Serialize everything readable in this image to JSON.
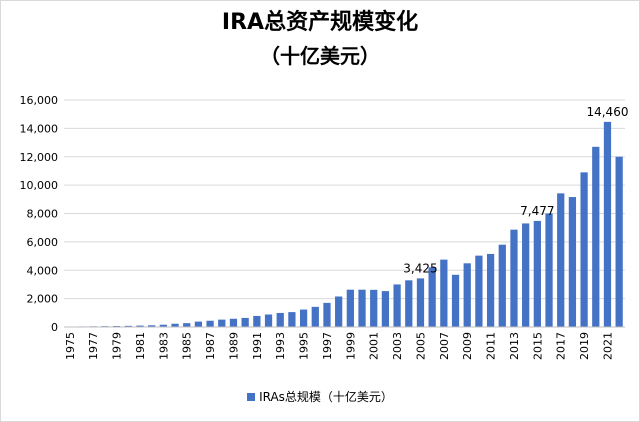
{
  "chart_data": {
    "type": "bar",
    "title": "IRA总资产规模变化",
    "subtitle": "（十亿美元）",
    "categories": [
      "1975",
      "1976",
      "1977",
      "1978",
      "1979",
      "1980",
      "1981",
      "1982",
      "1983",
      "1984",
      "1985",
      "1986",
      "1987",
      "1988",
      "1989",
      "1990",
      "1991",
      "1992",
      "1993",
      "1994",
      "1995",
      "1996",
      "1997",
      "1998",
      "1999",
      "2000",
      "2001",
      "2002",
      "2003",
      "2004",
      "2005",
      "2006",
      "2007",
      "2008",
      "2009",
      "2010",
      "2011",
      "2012",
      "2013",
      "2014",
      "2015",
      "2016",
      "2017",
      "2018",
      "2019",
      "2020",
      "2021",
      "2022"
    ],
    "x_tick_labels": [
      "1975",
      "1977",
      "1979",
      "1981",
      "1983",
      "1985",
      "1987",
      "1989",
      "1991",
      "1993",
      "1995",
      "1997",
      "1999",
      "2001",
      "2003",
      "2005",
      "2007",
      "2009",
      "2011",
      "2013",
      "2015",
      "2017",
      "2019",
      "2021"
    ],
    "series": [
      {
        "name": "IRAs总规模（十亿美元）",
        "color": "#4472c4",
        "values": [
          30,
          40,
          50,
          60,
          70,
          80,
          100,
          120,
          160,
          230,
          270,
          380,
          440,
          520,
          580,
          640,
          780,
          880,
          990,
          1050,
          1230,
          1420,
          1700,
          2150,
          2630,
          2630,
          2620,
          2530,
          3000,
          3290,
          3425,
          4200,
          4750,
          3680,
          4490,
          5030,
          5150,
          5800,
          6860,
          7300,
          7477,
          8000,
          9420,
          9160,
          10900,
          12700,
          14460,
          12000
        ]
      }
    ],
    "data_labels": [
      {
        "category": "2005",
        "text": "3,425"
      },
      {
        "category": "2015",
        "text": "7,477"
      },
      {
        "category": "2021",
        "text": "14,460"
      }
    ],
    "y_ticks": [
      "0",
      "2,000",
      "4,000",
      "6,000",
      "8,000",
      "10,000",
      "12,000",
      "14,000",
      "16,000"
    ],
    "ylim": [
      0,
      16000
    ],
    "xlabel": "",
    "ylabel": "",
    "grid": true,
    "legend_position": "bottom"
  }
}
